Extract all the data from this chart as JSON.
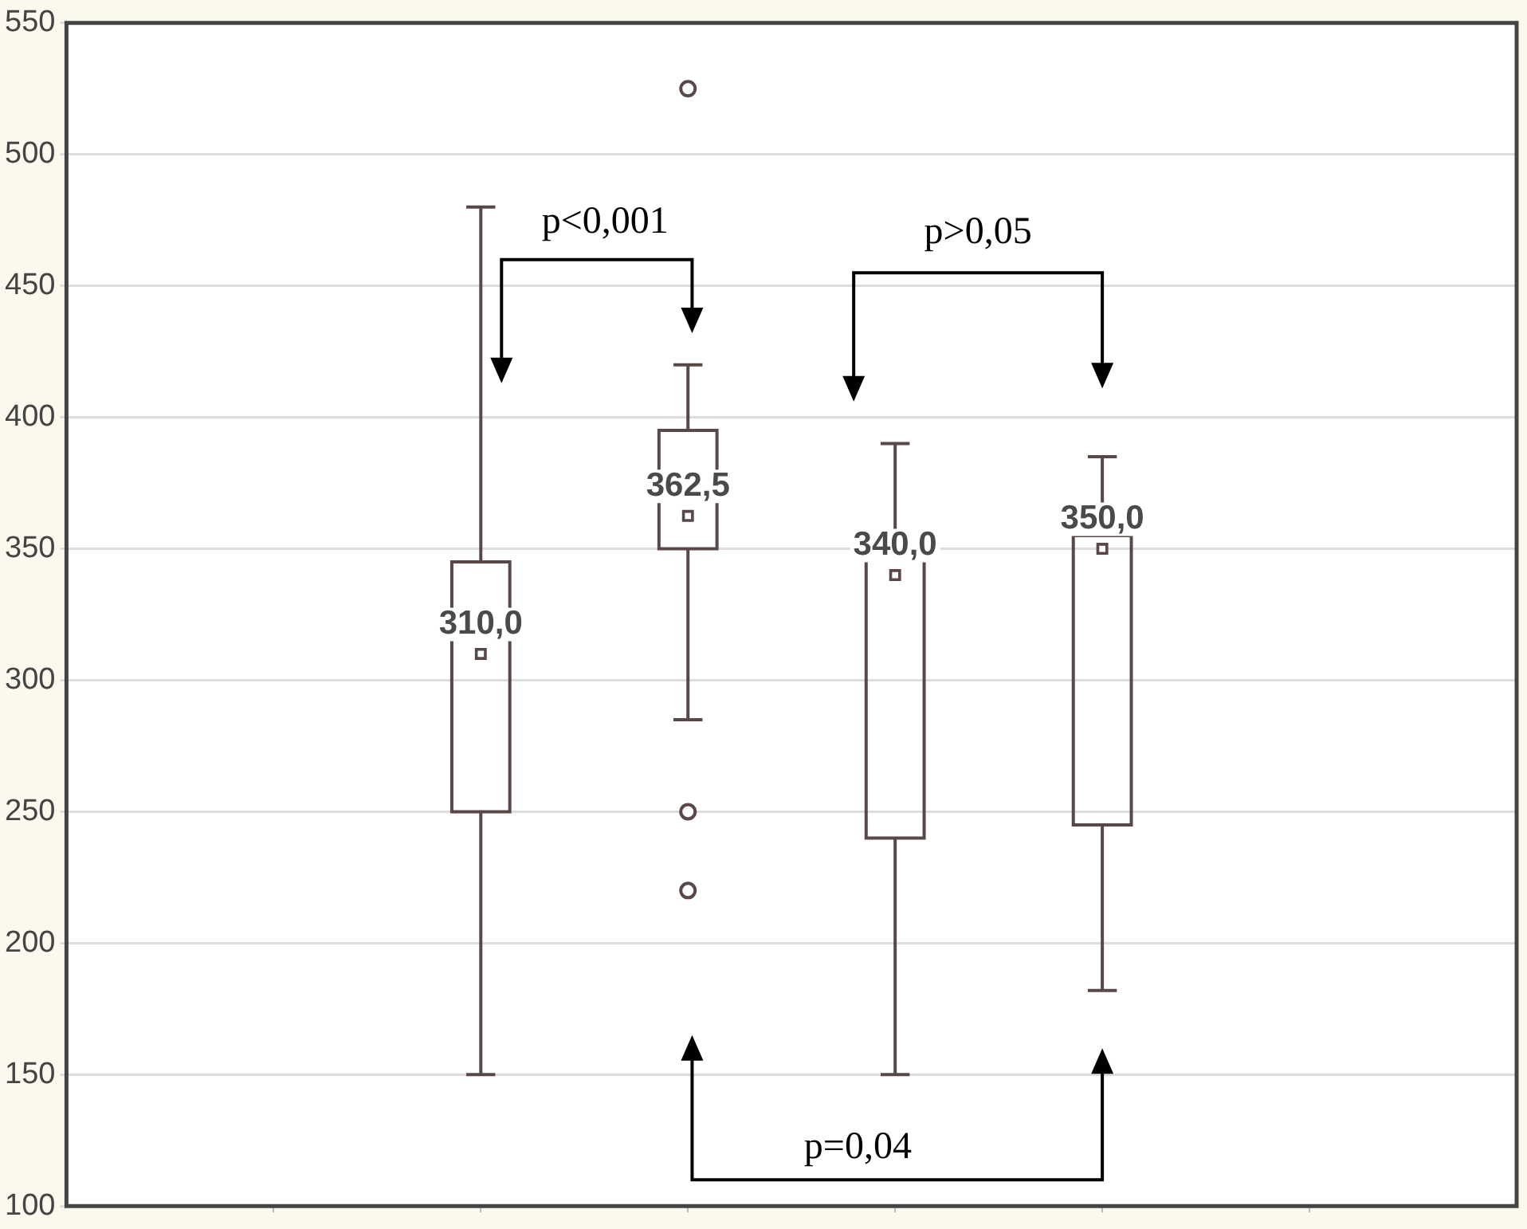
{
  "chart_data": {
    "type": "box",
    "categories": [
      null,
      null,
      null,
      null,
      null,
      null
    ],
    "series": [
      {
        "color": "#5a4848",
        "boxes": [
          null,
          {
            "low": 150,
            "q1": 250,
            "median": 310,
            "q3": 345,
            "high": 480
          },
          {
            "low": 285,
            "q1": 350,
            "median": 362.5,
            "q3": 395,
            "high": 420,
            "outliers": [
              525,
              250,
              220
            ]
          },
          {
            "low": 150,
            "q1": 240,
            "median": 340,
            "q3": 350,
            "high": 390
          },
          {
            "low": 182,
            "q1": 245,
            "median": 350,
            "q3": 355,
            "high": 385
          },
          null
        ]
      }
    ],
    "ylim": [
      100,
      550
    ],
    "yticks": [
      100,
      150,
      200,
      250,
      300,
      350,
      400,
      450,
      500,
      550
    ],
    "grid": "y",
    "tick_labels": "y",
    "marker": "square",
    "legend": false,
    "annotations": [
      {
        "text": "310,0",
        "y": 310
      },
      {
        "text": "362,5",
        "y": 362.5
      },
      {
        "text": "340,0",
        "y": 340
      },
      {
        "text": "350,0",
        "y": 350
      },
      "p<0,001",
      "p>0,05",
      "p=0,04"
    ]
  }
}
